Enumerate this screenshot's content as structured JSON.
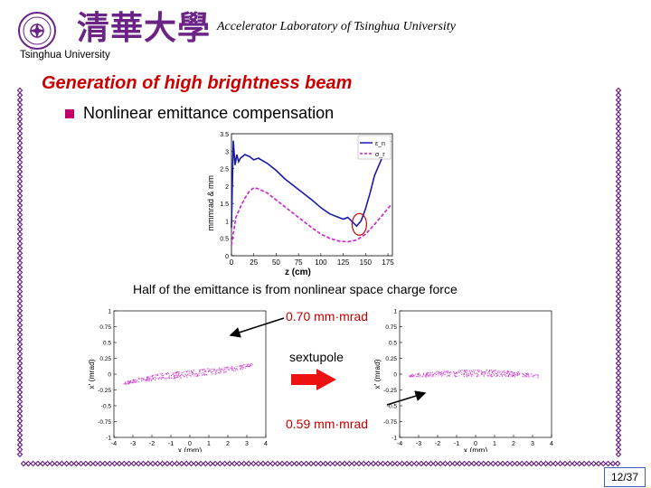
{
  "header": {
    "lab_name": "Accelerator Laboratory of Tsinghua University",
    "logo_text_en": "Tsinghua University",
    "logo_text_cn": "清華大學"
  },
  "slide": {
    "title": "Generation of high brightness beam",
    "bullet": "Nonlinear emittance compensation",
    "caption": "Half of the emittance is from nonlinear space charge force",
    "emittance_before": "0.70 mm·mrad",
    "sextupole_label": "sextupole",
    "emittance_after": "0.59 mm·mrad",
    "page_number": "12/37"
  },
  "colors": {
    "title": "#cc0000",
    "bullet": "#c0006a",
    "logo": "#6b2386",
    "dot_border": "#6b2386",
    "emittance_text": "#c00000",
    "sextupole_arrow": "#ee1111"
  },
  "chart_data": [
    {
      "type": "line",
      "xlabel": "z (cm)",
      "ylabel": "mmmrad & mm",
      "xlim": [
        0,
        180
      ],
      "ylim": [
        0,
        3.5
      ],
      "x_ticks": [
        "0",
        "25",
        "50",
        "75",
        "100",
        "125",
        "150",
        "175"
      ],
      "y_ticks": [
        "0",
        "0.5",
        "1",
        "1.5",
        "2",
        "2.5",
        "3",
        "3.5"
      ],
      "legend": [
        "ε_n",
        "σ_r"
      ],
      "legend_placement": "top-right",
      "series": [
        {
          "name": "ε_n",
          "color": "#1a1aaa",
          "x": [
            0,
            2,
            4,
            6,
            8,
            10,
            15,
            20,
            25,
            30,
            40,
            50,
            60,
            75,
            90,
            100,
            110,
            120,
            125,
            130,
            135,
            140,
            145,
            150,
            155,
            160,
            170,
            178
          ],
          "y": [
            0.8,
            3.3,
            2.6,
            2.9,
            2.7,
            2.8,
            2.9,
            2.85,
            2.75,
            2.8,
            2.65,
            2.45,
            2.2,
            1.9,
            1.6,
            1.38,
            1.2,
            1.1,
            1.05,
            1.1,
            0.98,
            0.85,
            1.0,
            1.35,
            1.8,
            2.3,
            2.9,
            3.3
          ]
        },
        {
          "name": "σ_r",
          "color": "#cc22cc",
          "x": [
            0,
            5,
            10,
            15,
            20,
            25,
            30,
            40,
            50,
            60,
            75,
            90,
            100,
            110,
            120,
            130,
            140,
            150,
            160,
            170,
            178
          ],
          "y": [
            0.3,
            1.1,
            1.4,
            1.65,
            1.85,
            1.95,
            1.92,
            1.8,
            1.6,
            1.4,
            1.1,
            0.8,
            0.62,
            0.5,
            0.42,
            0.4,
            0.45,
            0.62,
            0.9,
            1.2,
            1.45
          ]
        }
      ]
    },
    {
      "type": "scatter",
      "xlabel": "x (mm)",
      "ylabel": "x' (mrad)",
      "xlim": [
        -4,
        4
      ],
      "ylim": [
        -1,
        1
      ],
      "x_ticks": [
        "-4",
        "-3",
        "-2",
        "-1",
        "0",
        "1",
        "2",
        "3",
        "4"
      ],
      "y_ticks": [
        "-1",
        "-0.75",
        "-0.5",
        "-0.25",
        "0",
        "0.25",
        "0.5",
        "0.75",
        "1"
      ],
      "envelope": {
        "x": [
          -3.5,
          -2.5,
          -1.5,
          -0.5,
          0.5,
          1.5,
          2.5,
          3.3
        ],
        "y": [
          -0.14,
          -0.08,
          -0.03,
          0.0,
          0.03,
          0.06,
          0.1,
          0.16
        ]
      }
    },
    {
      "type": "scatter",
      "xlabel": "x (mm)",
      "ylabel": "x' (mrad)",
      "xlim": [
        -4,
        4
      ],
      "ylim": [
        -1,
        1
      ],
      "x_ticks": [
        "-4",
        "-3",
        "-2",
        "-1",
        "0",
        "1",
        "2",
        "3",
        "4"
      ],
      "y_ticks": [
        "-1",
        "-0.75",
        "-0.5",
        "-0.25",
        "0",
        "0.25",
        "0.5",
        "0.75",
        "1"
      ],
      "envelope": {
        "x": [
          -3.5,
          -2.5,
          -1.5,
          -0.5,
          0.5,
          1.5,
          2.5,
          3.3
        ],
        "y": [
          -0.02,
          0.0,
          0.01,
          0.02,
          0.02,
          0.01,
          0.0,
          -0.03
        ]
      }
    }
  ]
}
